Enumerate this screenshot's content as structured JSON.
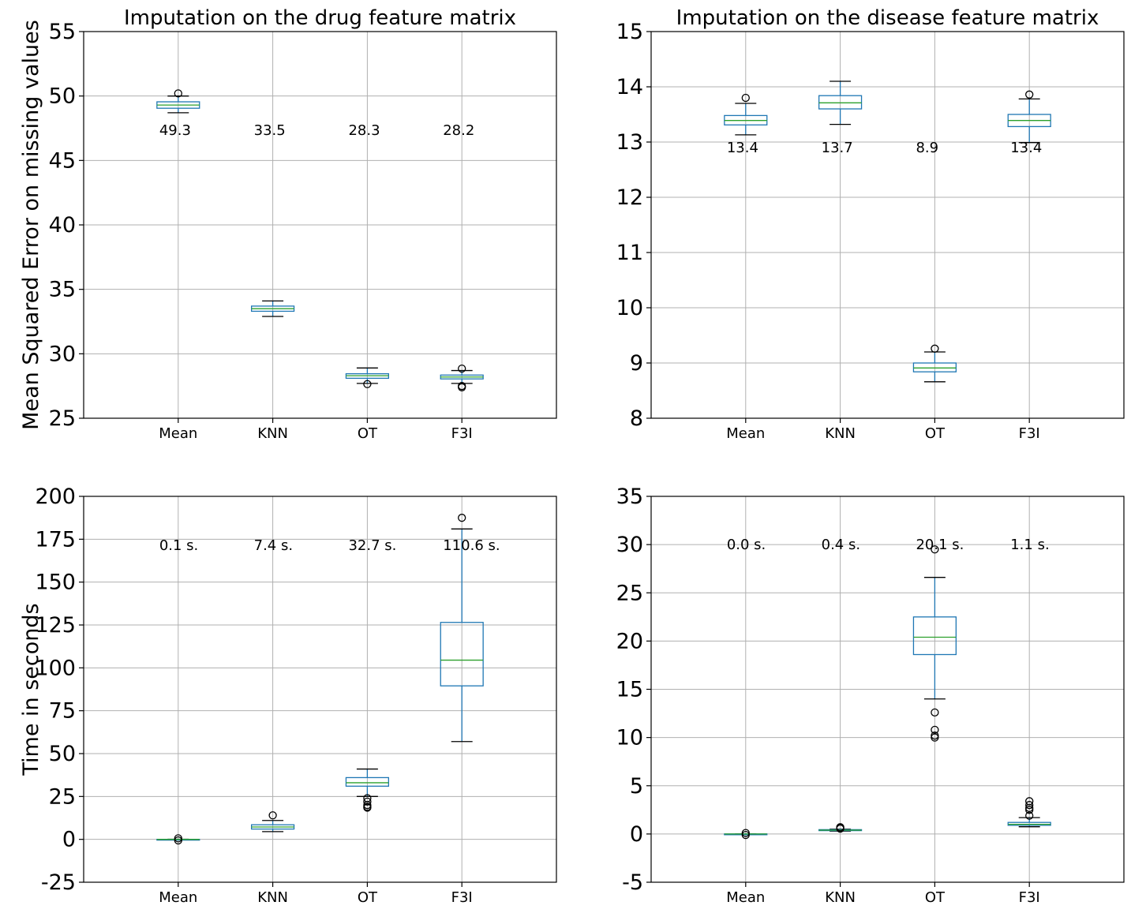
{
  "chart_data": [
    {
      "type": "box",
      "title": "Imputation on the drug feature matrix",
      "ylabel": "Mean Squared Error on missing values",
      "xlabel": "",
      "ylim": [
        25,
        55
      ],
      "yticks": [
        "25",
        "30",
        "35",
        "40",
        "45",
        "50",
        "55"
      ],
      "grid": true,
      "categories": [
        "Mean",
        "KNN",
        "OT",
        "F3I"
      ],
      "boxes": [
        {
          "name": "Mean",
          "whislo": 48.7,
          "q1": 49.05,
          "med": 49.3,
          "q3": 49.55,
          "whishi": 50.0,
          "fliers": [
            50.2
          ]
        },
        {
          "name": "KNN",
          "whislo": 32.9,
          "q1": 33.3,
          "med": 33.5,
          "q3": 33.7,
          "whishi": 34.1,
          "fliers": []
        },
        {
          "name": "OT",
          "whislo": 27.7,
          "q1": 28.1,
          "med": 28.3,
          "q3": 28.45,
          "whishi": 28.9,
          "fliers": [
            27.65
          ]
        },
        {
          "name": "F3I",
          "whislo": 27.7,
          "q1": 28.05,
          "med": 28.2,
          "q3": 28.35,
          "whishi": 28.7,
          "fliers": [
            28.85,
            27.5,
            27.4
          ]
        }
      ],
      "annotations": [
        "49.3",
        "33.5",
        "28.3",
        "28.2"
      ],
      "annotation_y": 47.35
    },
    {
      "type": "box",
      "title": "Imputation on the disease feature matrix",
      "ylabel": "",
      "xlabel": "",
      "ylim": [
        8,
        15
      ],
      "yticks": [
        "8",
        "9",
        "10",
        "11",
        "12",
        "13",
        "14",
        "15"
      ],
      "grid": true,
      "categories": [
        "Mean",
        "KNN",
        "OT",
        "F3I"
      ],
      "boxes": [
        {
          "name": "Mean",
          "whislo": 13.13,
          "q1": 13.31,
          "med": 13.39,
          "q3": 13.48,
          "whishi": 13.7,
          "fliers": [
            13.8
          ]
        },
        {
          "name": "KNN",
          "whislo": 13.32,
          "q1": 13.6,
          "med": 13.71,
          "q3": 13.84,
          "whishi": 14.1,
          "fliers": []
        },
        {
          "name": "OT",
          "whislo": 8.66,
          "q1": 8.84,
          "med": 8.91,
          "q3": 9.0,
          "whishi": 9.2,
          "fliers": [
            9.26
          ]
        },
        {
          "name": "F3I",
          "whislo": 12.99,
          "q1": 13.28,
          "med": 13.39,
          "q3": 13.5,
          "whishi": 13.78,
          "fliers": [
            13.86
          ]
        }
      ],
      "annotations": [
        "13.4",
        "13.7",
        "8.9",
        "13.4"
      ],
      "annotation_y": 12.9
    },
    {
      "type": "box",
      "title": "",
      "ylabel": "Time in seconds",
      "xlabel": "",
      "ylim": [
        -25,
        200
      ],
      "yticks": [
        "-25",
        "0",
        "25",
        "50",
        "75",
        "100",
        "125",
        "150",
        "175",
        "200"
      ],
      "grid": true,
      "categories": [
        "Mean",
        "KNN",
        "OT",
        "F3I"
      ],
      "boxes": [
        {
          "name": "Mean",
          "whislo": -0.05,
          "q1": -0.02,
          "med": 0.0,
          "q3": 0.02,
          "whishi": 0.05,
          "fliers": [
            0.6,
            -0.6
          ]
        },
        {
          "name": "KNN",
          "whislo": 4.5,
          "q1": 6.0,
          "med": 7.2,
          "q3": 8.5,
          "whishi": 11.0,
          "fliers": [
            14.0
          ]
        },
        {
          "name": "OT",
          "whislo": 25.0,
          "q1": 31.0,
          "med": 33.0,
          "q3": 36.0,
          "whishi": 41.0,
          "fliers": [
            24.0,
            22.0,
            20.0,
            19.0,
            18.5
          ]
        },
        {
          "name": "F3I",
          "whislo": 57.0,
          "q1": 89.5,
          "med": 104.5,
          "q3": 126.5,
          "whishi": 181.0,
          "fliers": [
            187.5
          ]
        }
      ],
      "annotations": [
        "0.1 s.",
        "7.4 s.",
        "32.7 s.",
        "110.6 s."
      ],
      "annotation_y": 171.5
    },
    {
      "type": "box",
      "title": "",
      "ylabel": "",
      "xlabel": "",
      "ylim": [
        -5,
        35
      ],
      "yticks": [
        "-5",
        "0",
        "5",
        "10",
        "15",
        "20",
        "25",
        "30",
        "35"
      ],
      "grid": true,
      "categories": [
        "Mean",
        "KNN",
        "OT",
        "F3I"
      ],
      "boxes": [
        {
          "name": "Mean",
          "whislo": -0.01,
          "q1": -0.005,
          "med": 0.0,
          "q3": 0.005,
          "whishi": 0.01,
          "fliers": [
            0.1,
            -0.1
          ]
        },
        {
          "name": "KNN",
          "whislo": 0.3,
          "q1": 0.35,
          "med": 0.4,
          "q3": 0.45,
          "whishi": 0.5,
          "fliers": [
            0.55,
            0.65,
            0.7
          ]
        },
        {
          "name": "OT",
          "whislo": 14.0,
          "q1": 18.6,
          "med": 20.4,
          "q3": 22.5,
          "whishi": 26.6,
          "fliers": [
            29.5,
            12.6,
            10.8,
            10.2,
            10.0
          ]
        },
        {
          "name": "F3I",
          "whislo": 0.75,
          "q1": 0.9,
          "med": 1.0,
          "q3": 1.2,
          "whishi": 1.7,
          "fliers": [
            3.4,
            3.0,
            2.7,
            2.5,
            1.9
          ]
        }
      ],
      "annotations": [
        "0.0 s.",
        "0.4 s.",
        "20.1 s.",
        "1.1 s."
      ],
      "annotation_y": 30.0
    }
  ]
}
